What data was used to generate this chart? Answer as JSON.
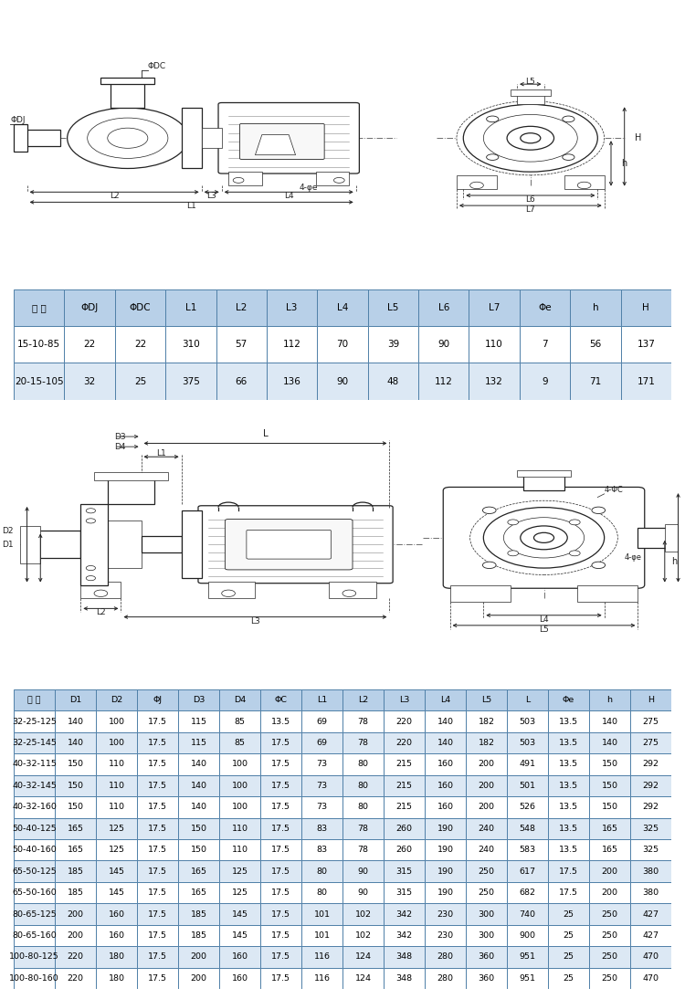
{
  "bg_color": "#ffffff",
  "diagram_bg": "#dce8f0",
  "table1_header": [
    "型 号",
    "ΦDJ",
    "ΦDC",
    "L1",
    "L2",
    "L3",
    "L4",
    "L5",
    "L6",
    "L7",
    "Φe",
    "h",
    "H"
  ],
  "table1_rows": [
    [
      "15-10-85",
      "22",
      "22",
      "310",
      "57",
      "112",
      "70",
      "39",
      "90",
      "110",
      "7",
      "56",
      "137"
    ],
    [
      "20-15-105",
      "32",
      "25",
      "375",
      "66",
      "136",
      "90",
      "48",
      "112",
      "132",
      "9",
      "71",
      "171"
    ]
  ],
  "table2_header": [
    "型 号",
    "D1",
    "D2",
    "ΦJ",
    "D3",
    "D4",
    "ΦC",
    "L1",
    "L2",
    "L3",
    "L4",
    "L5",
    "L",
    "Φe",
    "h",
    "H"
  ],
  "table2_rows": [
    [
      "32-25-125",
      "140",
      "100",
      "17.5",
      "115",
      "85",
      "13.5",
      "69",
      "78",
      "220",
      "140",
      "182",
      "503",
      "13.5",
      "140",
      "275"
    ],
    [
      "32-25-145",
      "140",
      "100",
      "17.5",
      "115",
      "85",
      "17.5",
      "69",
      "78",
      "220",
      "140",
      "182",
      "503",
      "13.5",
      "140",
      "275"
    ],
    [
      "40-32-115",
      "150",
      "110",
      "17.5",
      "140",
      "100",
      "17.5",
      "73",
      "80",
      "215",
      "160",
      "200",
      "491",
      "13.5",
      "150",
      "292"
    ],
    [
      "40-32-145",
      "150",
      "110",
      "17.5",
      "140",
      "100",
      "17.5",
      "73",
      "80",
      "215",
      "160",
      "200",
      "501",
      "13.5",
      "150",
      "292"
    ],
    [
      "40-32-160",
      "150",
      "110",
      "17.5",
      "140",
      "100",
      "17.5",
      "73",
      "80",
      "215",
      "160",
      "200",
      "526",
      "13.5",
      "150",
      "292"
    ],
    [
      "50-40-125",
      "165",
      "125",
      "17.5",
      "150",
      "110",
      "17.5",
      "83",
      "78",
      "260",
      "190",
      "240",
      "548",
      "13.5",
      "165",
      "325"
    ],
    [
      "50-40-160",
      "165",
      "125",
      "17.5",
      "150",
      "110",
      "17.5",
      "83",
      "78",
      "260",
      "190",
      "240",
      "583",
      "13.5",
      "165",
      "325"
    ],
    [
      "65-50-125",
      "185",
      "145",
      "17.5",
      "165",
      "125",
      "17.5",
      "80",
      "90",
      "315",
      "190",
      "250",
      "617",
      "17.5",
      "200",
      "380"
    ],
    [
      "65-50-160",
      "185",
      "145",
      "17.5",
      "165",
      "125",
      "17.5",
      "80",
      "90",
      "315",
      "190",
      "250",
      "682",
      "17.5",
      "200",
      "380"
    ],
    [
      "80-65-125",
      "200",
      "160",
      "17.5",
      "185",
      "145",
      "17.5",
      "101",
      "102",
      "342",
      "230",
      "300",
      "740",
      "25",
      "250",
      "427"
    ],
    [
      "80-65-160",
      "200",
      "160",
      "17.5",
      "185",
      "145",
      "17.5",
      "101",
      "102",
      "342",
      "230",
      "300",
      "900",
      "25",
      "250",
      "427"
    ],
    [
      "100-80-125",
      "220",
      "180",
      "17.5",
      "200",
      "160",
      "17.5",
      "116",
      "124",
      "348",
      "280",
      "360",
      "951",
      "25",
      "250",
      "470"
    ],
    [
      "100-80-160",
      "220",
      "180",
      "17.5",
      "200",
      "160",
      "17.5",
      "116",
      "124",
      "348",
      "280",
      "360",
      "951",
      "25",
      "250",
      "470"
    ]
  ],
  "header_bg": "#b8d0e8",
  "row_bg_even": "#ffffff",
  "row_bg_odd": "#dce8f4",
  "border_color": "#5080a8",
  "lc": "#222222",
  "dim_color": "#222222"
}
